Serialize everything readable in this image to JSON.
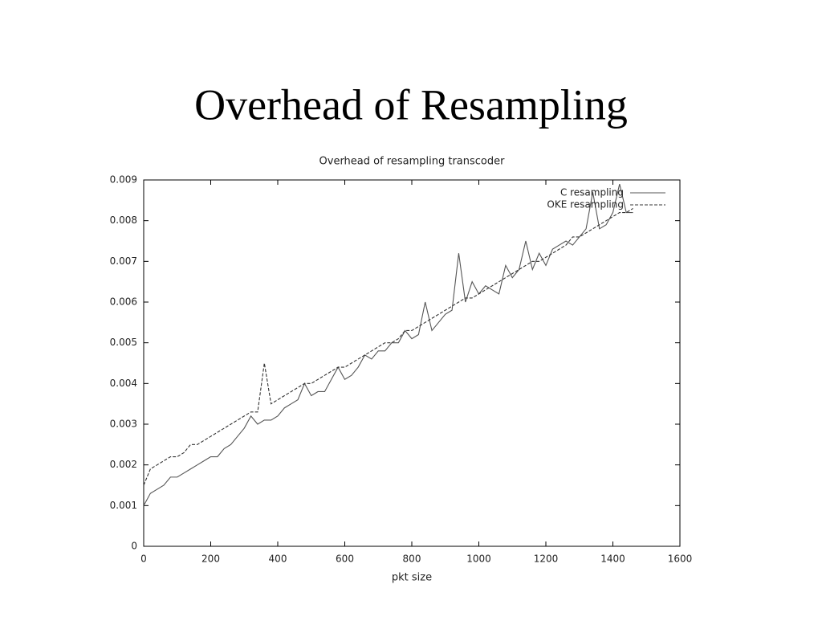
{
  "slide_title": "Overhead of Resampling",
  "chart_data": {
    "type": "line",
    "title": "Overhead of resampling transcoder",
    "xlabel": "pkt size",
    "x": [
      0,
      20,
      40,
      60,
      80,
      100,
      120,
      140,
      160,
      180,
      200,
      220,
      240,
      260,
      280,
      300,
      320,
      340,
      360,
      380,
      400,
      420,
      440,
      460,
      480,
      500,
      520,
      540,
      560,
      580,
      600,
      620,
      640,
      660,
      680,
      700,
      720,
      740,
      760,
      780,
      800,
      820,
      840,
      860,
      880,
      900,
      920,
      940,
      960,
      980,
      1000,
      1020,
      1040,
      1060,
      1080,
      1100,
      1120,
      1140,
      1160,
      1180,
      1200,
      1220,
      1240,
      1260,
      1280,
      1300,
      1320,
      1340,
      1360,
      1380,
      1400,
      1420,
      1440,
      1460
    ],
    "series": [
      {
        "name": "C resampling",
        "color": "#555555",
        "line_style": "solid",
        "values": [
          0.001,
          0.0013,
          0.0014,
          0.0015,
          0.0017,
          0.0017,
          0.0018,
          0.0019,
          0.002,
          0.0021,
          0.0022,
          0.0022,
          0.0024,
          0.0025,
          0.0027,
          0.0029,
          0.0032,
          0.003,
          0.0031,
          0.0031,
          0.0032,
          0.0034,
          0.0035,
          0.0036,
          0.004,
          0.0037,
          0.0038,
          0.0038,
          0.0041,
          0.0044,
          0.0041,
          0.0042,
          0.0044,
          0.0047,
          0.0046,
          0.0048,
          0.0048,
          0.005,
          0.005,
          0.0053,
          0.0051,
          0.0052,
          0.006,
          0.0053,
          0.0055,
          0.0057,
          0.0058,
          0.0072,
          0.006,
          0.0065,
          0.0062,
          0.0064,
          0.0063,
          0.0062,
          0.0069,
          0.0066,
          0.0068,
          0.0075,
          0.0068,
          0.0072,
          0.0069,
          0.0073,
          0.0074,
          0.0075,
          0.0074,
          0.0076,
          0.0078,
          0.0087,
          0.0078,
          0.0079,
          0.0082,
          0.0089,
          0.0082,
          0.0082
        ]
      },
      {
        "name": "OKE resampling",
        "color": "#333333",
        "line_style": "dashed",
        "values": [
          0.0015,
          0.0019,
          0.002,
          0.0021,
          0.0022,
          0.0022,
          0.0023,
          0.0025,
          0.0025,
          0.0026,
          0.0027,
          0.0028,
          0.0029,
          0.003,
          0.0031,
          0.0032,
          0.0033,
          0.0033,
          0.0045,
          0.0035,
          0.0036,
          0.0037,
          0.0038,
          0.0039,
          0.004,
          0.004,
          0.0041,
          0.0042,
          0.0043,
          0.0044,
          0.0044,
          0.0045,
          0.0046,
          0.0047,
          0.0048,
          0.0049,
          0.005,
          0.005,
          0.0051,
          0.0053,
          0.0053,
          0.0054,
          0.0055,
          0.0056,
          0.0057,
          0.0058,
          0.0059,
          0.006,
          0.0061,
          0.0061,
          0.0062,
          0.0063,
          0.0064,
          0.0065,
          0.0066,
          0.0067,
          0.0068,
          0.0069,
          0.007,
          0.007,
          0.0071,
          0.0072,
          0.0073,
          0.0074,
          0.0076,
          0.0076,
          0.0077,
          0.0078,
          0.0079,
          0.008,
          0.0081,
          0.0082,
          0.0082,
          0.0083
        ]
      }
    ],
    "xlim": [
      0,
      1600
    ],
    "xticks": [
      0,
      200,
      400,
      600,
      800,
      1000,
      1200,
      1400,
      1600
    ],
    "ylim": [
      0,
      0.009
    ],
    "yticks": [
      0,
      0.001,
      0.002,
      0.003,
      0.004,
      0.005,
      0.006,
      0.007,
      0.008,
      0.009
    ],
    "grid": false,
    "legend": "upper right"
  }
}
